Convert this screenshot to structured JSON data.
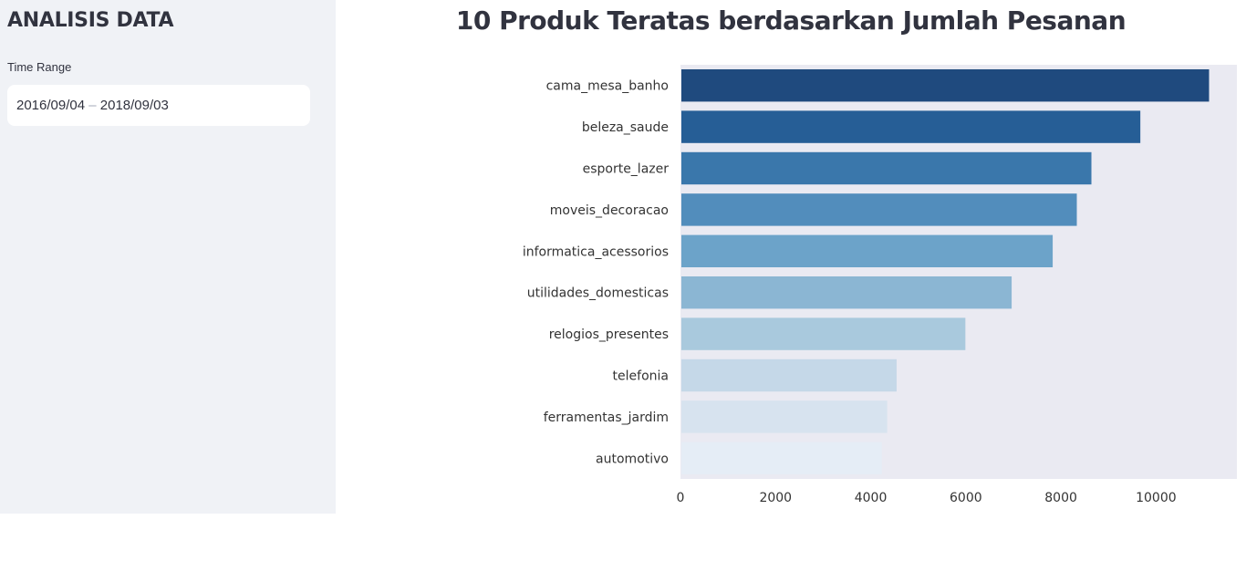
{
  "sidebar": {
    "title": "ANALISIS DATA",
    "time_range_label": "Time Range",
    "date_start": "2016/09/04",
    "date_separator": "–",
    "date_end": "2018/09/03"
  },
  "main": {
    "title": "10 Produk Teratas berdasarkan Jumlah Pesanan"
  },
  "chart_data": {
    "type": "bar",
    "orientation": "horizontal",
    "title": "10 Produk Teratas berdasarkan Jumlah Pesanan",
    "xlabel": "",
    "ylabel": "",
    "categories": [
      "cama_mesa_banho",
      "beleza_saude",
      "esporte_lazer",
      "moveis_decoracao",
      "informatica_acessorios",
      "utilidades_domesticas",
      "relogios_presentes",
      "telefonia",
      "ferramentas_jardim",
      "automotivo"
    ],
    "values": [
      11115,
      9670,
      8641,
      8334,
      7827,
      6964,
      5991,
      4545,
      4347,
      4235
    ],
    "xlim": [
      0,
      11700
    ],
    "xticks": [
      0,
      2000,
      4000,
      6000,
      8000,
      10000
    ],
    "grid": false,
    "colors": [
      "#1f4a7e",
      "#265e96",
      "#3a77ab",
      "#528dbc",
      "#6ca3c9",
      "#8bb6d3",
      "#a9c9dd",
      "#c5d8e8",
      "#d7e3ef",
      "#e5edf6"
    ],
    "plot_background": "#eaeaf2"
  }
}
